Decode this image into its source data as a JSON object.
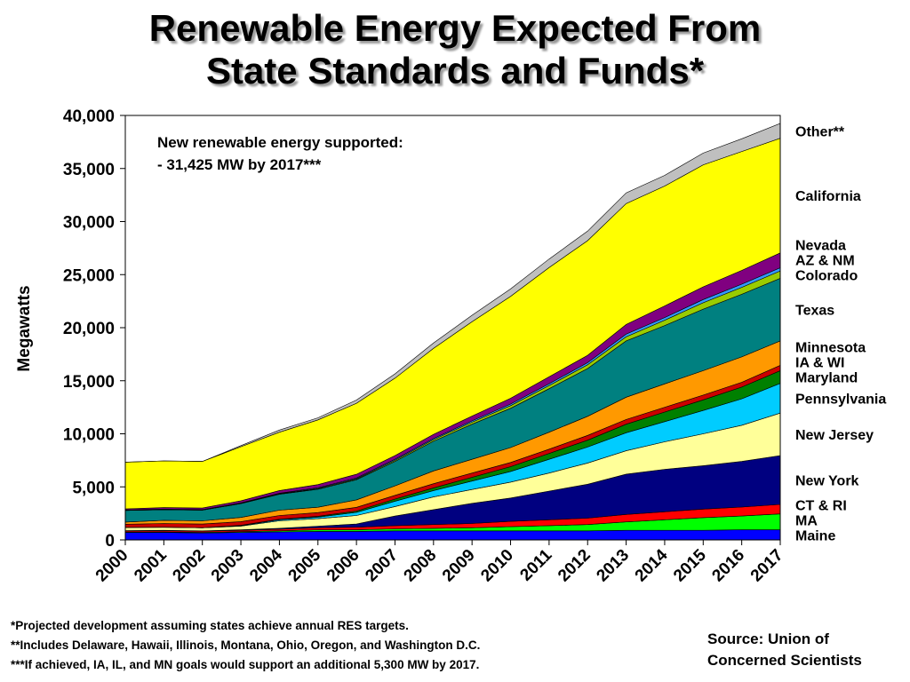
{
  "title_lines": [
    "Renewable Energy Expected From",
    "State Standards and Funds*"
  ],
  "chart_data": {
    "type": "area",
    "stacked": true,
    "x": [
      "2000",
      "2001",
      "2002",
      "2003",
      "2004",
      "2005",
      "2006",
      "2007",
      "2008",
      "2009",
      "2010",
      "2011",
      "2012",
      "2013",
      "2014",
      "2015",
      "2016",
      "2017"
    ],
    "ylabel": "Megawatts",
    "ylim": [
      0,
      40000
    ],
    "yticks": [
      0,
      5000,
      10000,
      15000,
      20000,
      25000,
      30000,
      35000,
      40000
    ],
    "ytick_labels": [
      "0",
      "5,000",
      "10,000",
      "15,000",
      "20,000",
      "25,000",
      "30,000",
      "35,000",
      "40,000"
    ],
    "grid": false,
    "legend": "labels at right edge of chart",
    "annotation_lines": [
      "New renewable energy supported:",
      "- 31,425 MW by 2017***"
    ],
    "series": [
      {
        "name": "Maine",
        "color": "#0000ff",
        "values": [
          700,
          700,
          650,
          700,
          750,
          800,
          800,
          850,
          850,
          850,
          850,
          850,
          850,
          900,
          900,
          900,
          950,
          950
        ]
      },
      {
        "name": "MA",
        "color": "#00ff00",
        "values": [
          50,
          60,
          60,
          80,
          100,
          150,
          150,
          200,
          250,
          300,
          400,
          500,
          600,
          800,
          1000,
          1200,
          1300,
          1500
        ]
      },
      {
        "name": "CT & RI",
        "color": "#ff0000",
        "values": [
          100,
          110,
          110,
          120,
          150,
          200,
          250,
          300,
          350,
          400,
          500,
          550,
          600,
          700,
          750,
          800,
          850,
          900
        ]
      },
      {
        "name": "New York",
        "color": "#000080",
        "values": [
          30,
          30,
          30,
          50,
          100,
          150,
          300,
          900,
          1400,
          1900,
          2200,
          2700,
          3200,
          3800,
          4000,
          4100,
          4300,
          4600
        ]
      },
      {
        "name": "New Jersey",
        "color": "#ffff99",
        "values": [
          300,
          300,
          300,
          350,
          700,
          700,
          800,
          900,
          1200,
          1300,
          1500,
          1700,
          2000,
          2200,
          2600,
          3000,
          3400,
          4000
        ]
      },
      {
        "name": "Pennsylvania",
        "color": "#00ccff",
        "values": [
          0,
          0,
          0,
          50,
          100,
          150,
          300,
          500,
          600,
          800,
          1000,
          1300,
          1500,
          1700,
          1900,
          2200,
          2500,
          2800
        ]
      },
      {
        "name": "Maryland",
        "color": "#008000",
        "values": [
          0,
          0,
          0,
          20,
          50,
          80,
          120,
          200,
          250,
          350,
          450,
          550,
          650,
          800,
          900,
          1000,
          1100,
          1200
        ]
      },
      {
        "name": "IA & WI",
        "color": "#cc0000",
        "values": [
          300,
          350,
          350,
          350,
          350,
          350,
          350,
          350,
          400,
          400,
          400,
          400,
          450,
          450,
          450,
          450,
          450,
          500
        ]
      },
      {
        "name": "Minnesota",
        "color": "#ff9900",
        "values": [
          200,
          300,
          300,
          400,
          500,
          500,
          700,
          900,
          1200,
          1300,
          1400,
          1600,
          1800,
          2100,
          2200,
          2300,
          2400,
          2300
        ]
      },
      {
        "name": "Texas",
        "color": "#008080",
        "values": [
          1100,
          1000,
          1000,
          1300,
          1500,
          1700,
          1900,
          2300,
          2800,
          3300,
          3700,
          4100,
          4500,
          5300,
          5500,
          5800,
          5900,
          5900
        ]
      },
      {
        "name": "Colorado",
        "color": "#99cc00",
        "values": [
          0,
          0,
          0,
          20,
          40,
          60,
          80,
          100,
          150,
          200,
          250,
          300,
          350,
          400,
          500,
          600,
          650,
          700
        ]
      },
      {
        "name": "AZ & NM",
        "color": "#3399ff",
        "values": [
          50,
          50,
          50,
          50,
          60,
          70,
          80,
          100,
          100,
          120,
          150,
          170,
          200,
          250,
          250,
          300,
          300,
          300
        ]
      },
      {
        "name": "Nevada",
        "color": "#800080",
        "values": [
          100,
          150,
          150,
          200,
          250,
          300,
          350,
          350,
          400,
          450,
          550,
          650,
          700,
          900,
          1100,
          1200,
          1300,
          1400
        ]
      },
      {
        "name": "California",
        "color": "#ffff00",
        "values": [
          4400,
          4400,
          4400,
          5100,
          5500,
          6100,
          6700,
          7300,
          8100,
          8900,
          9600,
          10300,
          10800,
          11400,
          11300,
          11500,
          11200,
          10800
        ]
      },
      {
        "name": "Other**",
        "color": "#bfbfbf",
        "values": [
          0,
          0,
          0,
          100,
          200,
          200,
          300,
          400,
          500,
          600,
          700,
          800,
          900,
          1000,
          1000,
          1100,
          1200,
          1400
        ]
      }
    ]
  },
  "footnotes": [
    "*Projected development assuming states achieve annual RES targets.",
    "**Includes Delaware, Hawaii, Illinois, Montana, Ohio, Oregon, and Washington D.C.",
    "***If achieved, IA, IL, and MN goals would support an additional 5,300 MW by 2017."
  ],
  "source_lines": [
    "Source: Union of",
    "Concerned Scientists"
  ]
}
